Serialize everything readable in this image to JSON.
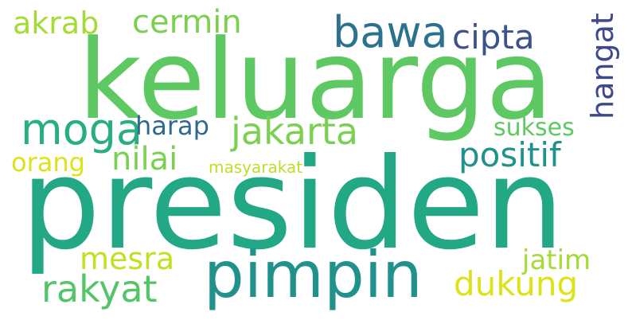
{
  "cloud": {
    "words": [
      {
        "text": "presiden",
        "color": "#22a884"
      },
      {
        "text": "keluarga",
        "color": "#5ec962"
      },
      {
        "text": "pimpin",
        "color": "#21918c"
      },
      {
        "text": "bawa",
        "color": "#2c728e"
      },
      {
        "text": "moga",
        "color": "#29af7f"
      },
      {
        "text": "jakarta",
        "color": "#7ad151"
      },
      {
        "text": "cipta",
        "color": "#3b528b"
      },
      {
        "text": "cermin",
        "color": "#7ad151"
      },
      {
        "text": "akrab",
        "color": "#a5db36"
      },
      {
        "text": "hangat",
        "color": "#3e4989"
      },
      {
        "text": "positif",
        "color": "#21918c"
      },
      {
        "text": "sukses",
        "color": "#5ec962"
      },
      {
        "text": "harap",
        "color": "#31688e"
      },
      {
        "text": "nilai",
        "color": "#7ad151"
      },
      {
        "text": "orang",
        "color": "#dde318"
      },
      {
        "text": "masyarakat",
        "color": "#bddf26"
      },
      {
        "text": "rakyat",
        "color": "#52c569"
      },
      {
        "text": "mesra",
        "color": "#c2df23"
      },
      {
        "text": "dukung",
        "color": "#dde318"
      },
      {
        "text": "jatim",
        "color": "#a5db36"
      }
    ]
  }
}
